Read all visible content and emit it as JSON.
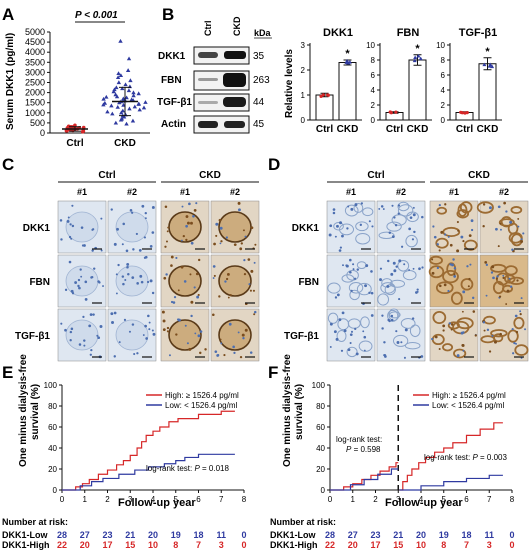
{
  "colors": {
    "red": "#d62728",
    "blue": "#2f3aa0",
    "black": "#111111",
    "tissue": "#e8eef5",
    "brown": "#9c6b32",
    "blue_stain": "#4d6fb0"
  },
  "panels": [
    "A",
    "B",
    "C",
    "D",
    "E",
    "F"
  ],
  "panelA": {
    "ylabel": "Serum DKK1 (pg/ml)",
    "pvalue": "P < 0.001",
    "categories": [
      "Ctrl",
      "CKD"
    ],
    "yticks": [
      "0",
      "500",
      "1000",
      "1500",
      "2000",
      "2500",
      "3000",
      "3500",
      "4000",
      "4500",
      "5000"
    ]
  },
  "panelB": {
    "blot_lanes": [
      "Ctrl",
      "CKD"
    ],
    "blot_unit": "kDa",
    "proteins": [
      "DKK1",
      "FBN",
      "TGF-β1",
      "Actin"
    ],
    "kda": [
      "35",
      "263",
      "44",
      "45"
    ],
    "ylabel": "Relative levels",
    "star": "*"
  },
  "panelC": {
    "groups": [
      "Ctrl",
      "CKD"
    ],
    "replicates": [
      "#1",
      "#2",
      "#1",
      "#2"
    ],
    "rows": [
      "DKK1",
      "FBN",
      "TGF-β1"
    ]
  },
  "panelD": {
    "groups": [
      "Ctrl",
      "CKD"
    ],
    "replicates": [
      "#1",
      "#2",
      "#1",
      "#2"
    ],
    "rows": [
      "DKK1",
      "FBN",
      "TGF-β1"
    ]
  },
  "panelE": {
    "ylabel_line1": "One minus dialysis-free",
    "ylabel_line2": "survival (%)",
    "xlabel": "Follow-up year",
    "legend_high": "High: ≥ 1526.4 pg/ml",
    "legend_low": "Low: < 1526.4 pg/ml",
    "stat_label": "log-rank test: ",
    "stat_p": "P",
    "stat_value": " = 0.018",
    "risk_title": "Number at risk:",
    "risk_rows": [
      {
        "label": "DKK1-Low",
        "values": [
          "28",
          "27",
          "23",
          "21",
          "20",
          "19",
          "18",
          "11",
          "0"
        ]
      },
      {
        "label": "DKK1-High",
        "values": [
          "22",
          "20",
          "17",
          "15",
          "10",
          "8",
          "7",
          "3",
          "0"
        ]
      }
    ]
  },
  "panelF": {
    "ylabel_line1": "One minus dialysis-free",
    "ylabel_line2": "survival (%)",
    "xlabel": "Follow-up year",
    "legend_high": "High: ≥ 1526.4 pg/ml",
    "legend_low": "Low: < 1526.4 pg/ml",
    "stat1_label": "log-rank test:",
    "stat1_p": "P",
    "stat1_value": " = 0.598",
    "stat2_label": "log-rank test: ",
    "stat2_p": "P",
    "stat2_value": " = 0.003",
    "risk_title": "Number at risk:",
    "risk_rows": [
      {
        "label": "DKK1-Low",
        "values": [
          "28",
          "27",
          "23",
          "21",
          "20",
          "19",
          "18",
          "11",
          "0"
        ]
      },
      {
        "label": "DKK1-High",
        "values": [
          "22",
          "20",
          "17",
          "15",
          "10",
          "8",
          "7",
          "3",
          "0"
        ]
      }
    ]
  },
  "chart_data": [
    {
      "type": "scatter",
      "panel": "A",
      "ylabel": "Serum DKK1 (pg/ml)",
      "ylim": [
        0,
        5000
      ],
      "categories": [
        "Ctrl",
        "CKD"
      ],
      "series": [
        {
          "name": "Ctrl",
          "mean": 200,
          "sd": 110,
          "values": [
            60,
            90,
            110,
            130,
            150,
            170,
            190,
            200,
            210,
            230,
            250,
            270,
            300,
            330,
            380,
            150,
            120,
            260,
            310,
            180
          ]
        },
        {
          "name": "CKD",
          "mean": 1560,
          "sd": 700,
          "values": [
            4550,
            3680,
            3100,
            2950,
            2850,
            2750,
            2600,
            2500,
            2400,
            2300,
            2250,
            2200,
            2150,
            2100,
            2050,
            2000,
            1950,
            1900,
            1850,
            1800,
            1780,
            1750,
            1700,
            1680,
            1650,
            1620,
            1600,
            1580,
            1550,
            1520,
            1500,
            1480,
            1450,
            1420,
            1400,
            1380,
            1350,
            1300,
            1280,
            1250,
            1200,
            1150,
            1100,
            1050,
            1000,
            950,
            900,
            850,
            800,
            700,
            650,
            600,
            500,
            450
          ]
        }
      ]
    },
    {
      "type": "bar",
      "panel": "B",
      "title": "DKK1",
      "ylabel": "Relative levels",
      "categories": [
        "Ctrl",
        "CKD"
      ],
      "values": [
        1.0,
        2.3
      ],
      "sd": [
        0.07,
        0.1
      ],
      "ylim": [
        0,
        3
      ],
      "yticks": [
        0,
        1,
        2,
        3
      ]
    },
    {
      "type": "bar",
      "panel": "B",
      "title": "FBN",
      "ylabel": "Relative levels",
      "categories": [
        "Ctrl",
        "CKD"
      ],
      "values": [
        1.0,
        8.0
      ],
      "sd": [
        0.1,
        0.7
      ],
      "ylim": [
        0,
        10
      ],
      "yticks": [
        0,
        2,
        4,
        6,
        8,
        10
      ]
    },
    {
      "type": "bar",
      "panel": "B",
      "title": "TGF-β1",
      "ylabel": "Relative levels",
      "categories": [
        "Ctrl",
        "CKD"
      ],
      "values": [
        1.0,
        7.5
      ],
      "sd": [
        0.1,
        0.8
      ],
      "ylim": [
        0,
        10
      ],
      "yticks": [
        0,
        2,
        4,
        6,
        8,
        10
      ]
    },
    {
      "type": "line",
      "panel": "E",
      "xlabel": "Follow-up year",
      "xlim": [
        0,
        8
      ],
      "ylim": [
        0,
        100
      ],
      "xticks": [
        0,
        1,
        2,
        3,
        4,
        5,
        6,
        7,
        8
      ],
      "yticks": [
        0,
        20,
        40,
        60,
        80,
        100
      ],
      "series": [
        {
          "name": "High: ≥ 1526.4 pg/ml",
          "steps": [
            [
              0,
              0
            ],
            [
              0.6,
              3
            ],
            [
              0.9,
              6
            ],
            [
              1.2,
              10
            ],
            [
              1.6,
              15
            ],
            [
              2.0,
              19
            ],
            [
              2.4,
              24
            ],
            [
              2.7,
              28
            ],
            [
              3.0,
              33
            ],
            [
              3.3,
              40
            ],
            [
              3.5,
              46
            ],
            [
              3.7,
              52
            ],
            [
              4.0,
              56
            ],
            [
              4.3,
              60
            ],
            [
              4.7,
              65
            ],
            [
              5.1,
              68
            ],
            [
              5.5,
              68
            ],
            [
              6.0,
              72
            ],
            [
              7.0,
              75
            ],
            [
              7.6,
              75
            ]
          ]
        },
        {
          "name": "Low: < 1526.4 pg/ml",
          "steps": [
            [
              0,
              0
            ],
            [
              0.8,
              4
            ],
            [
              1.3,
              8
            ],
            [
              1.8,
              11
            ],
            [
              2.5,
              15
            ],
            [
              3.2,
              19
            ],
            [
              3.8,
              22
            ],
            [
              4.5,
              25
            ],
            [
              5.0,
              28
            ],
            [
              5.4,
              31
            ],
            [
              6.0,
              34
            ],
            [
              7.6,
              34
            ]
          ]
        }
      ]
    },
    {
      "type": "line",
      "panel": "F",
      "xlabel": "Follow-up year",
      "xlim": [
        0,
        8
      ],
      "ylim": [
        0,
        100
      ],
      "xticks": [
        0,
        1,
        2,
        3,
        4,
        5,
        6,
        7,
        8
      ],
      "yticks": [
        0,
        20,
        40,
        60,
        80,
        100
      ],
      "vline": 3,
      "series": [
        {
          "name": "High: ≥ 1526.4 pg/ml",
          "steps": [
            [
              0,
              0
            ],
            [
              0.6,
              3
            ],
            [
              1.0,
              6
            ],
            [
              1.4,
              10
            ],
            [
              1.8,
              14
            ],
            [
              2.2,
              18
            ],
            [
              2.6,
              22
            ],
            [
              2.9,
              26
            ],
            [
              3.05,
              0
            ],
            [
              3.2,
              8
            ],
            [
              3.4,
              14
            ],
            [
              3.6,
              20
            ],
            [
              3.9,
              26
            ],
            [
              4.2,
              31
            ],
            [
              4.6,
              36
            ],
            [
              5.0,
              40
            ],
            [
              5.4,
              45
            ],
            [
              6.0,
              52
            ],
            [
              6.6,
              58
            ],
            [
              7.2,
              64
            ],
            [
              7.6,
              64
            ]
          ]
        },
        {
          "name": "Low: < 1526.4 pg/ml",
          "steps": [
            [
              0,
              0
            ],
            [
              0.9,
              5
            ],
            [
              1.5,
              10
            ],
            [
              2.1,
              15
            ],
            [
              2.7,
              20
            ],
            [
              3.05,
              0
            ],
            [
              4.0,
              4
            ],
            [
              5.0,
              8
            ],
            [
              6.0,
              11
            ],
            [
              7.0,
              14
            ],
            [
              7.6,
              14
            ]
          ]
        }
      ]
    }
  ]
}
